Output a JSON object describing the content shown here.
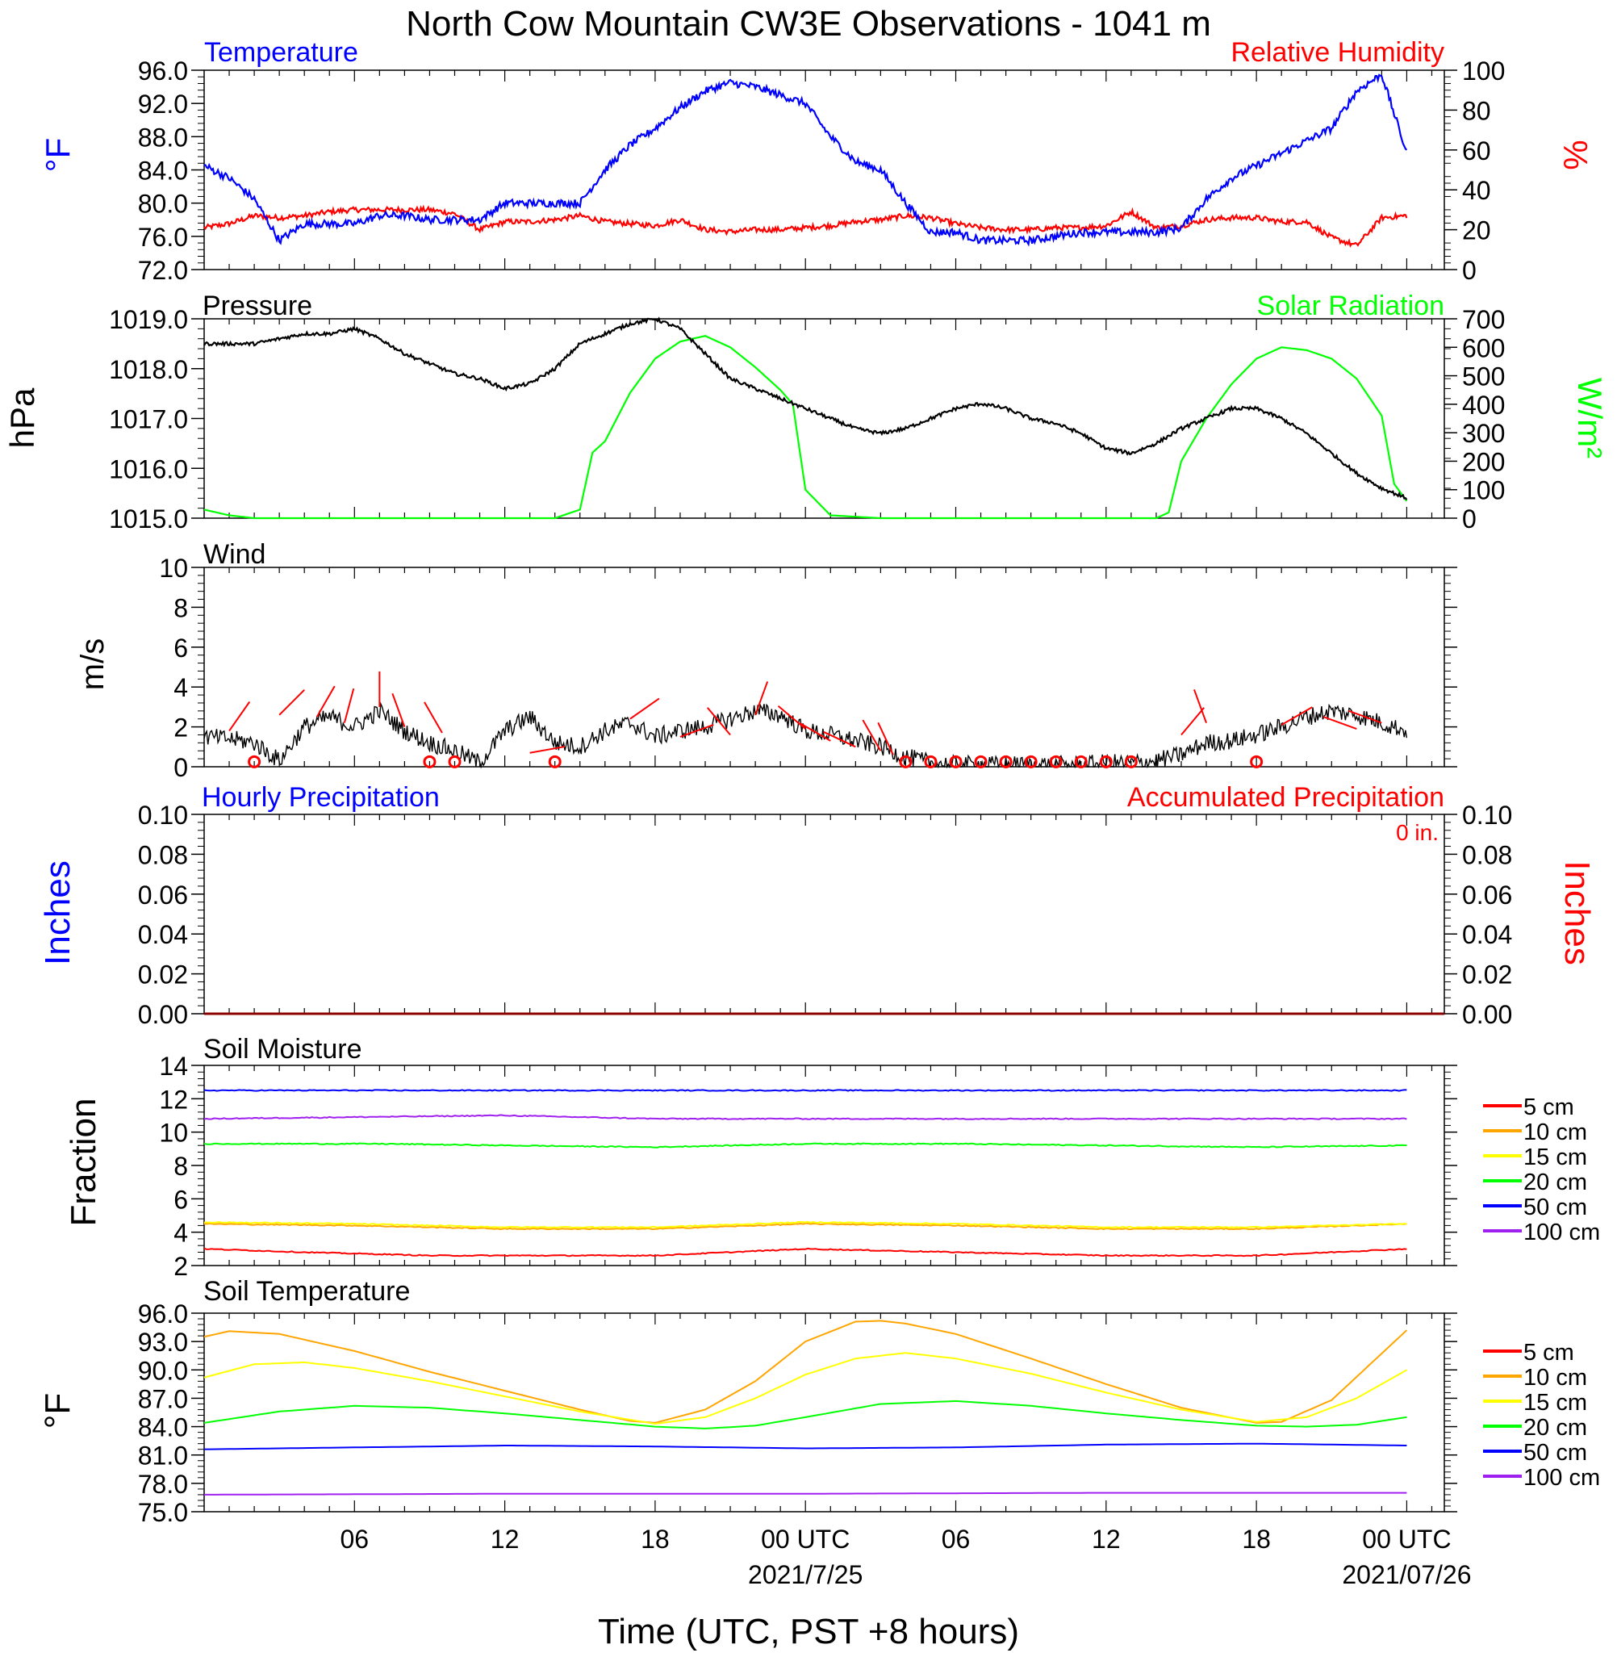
{
  "title": "North Cow Mountain CW3E Observations - 1041 m",
  "xlabel": "Time (UTC, PST +8 hours)",
  "x_ticks": [
    {
      "t": 6,
      "label": "06",
      "sub": ""
    },
    {
      "t": 12,
      "label": "12",
      "sub": ""
    },
    {
      "t": 18,
      "label": "18",
      "sub": ""
    },
    {
      "t": 24,
      "label": "00 UTC",
      "sub": "2021/7/25"
    },
    {
      "t": 30,
      "label": "06",
      "sub": ""
    },
    {
      "t": 36,
      "label": "12",
      "sub": ""
    },
    {
      "t": 42,
      "label": "18",
      "sub": ""
    },
    {
      "t": 48,
      "label": "00 UTC",
      "sub": "2021/07/26"
    }
  ],
  "legend_depths": [
    "5 cm",
    "10 cm",
    "15 cm",
    "20 cm",
    "50 cm",
    "100 cm"
  ],
  "depth_colors": [
    "#ff0000",
    "#ffa500",
    "#ffff00",
    "#00ff00",
    "#0000ff",
    "#a020f0"
  ],
  "panels": {
    "temp": {
      "left_title": "Temperature",
      "right_title": "Relative Humidity",
      "left_unit": "°F",
      "right_unit": "%",
      "left_ticks": [
        "96.0",
        "92.0",
        "88.0",
        "84.0",
        "80.0",
        "76.0",
        "72.0"
      ],
      "right_ticks": [
        "100",
        "80",
        "60",
        "40",
        "20",
        "0"
      ]
    },
    "pres": {
      "left_title": "Pressure",
      "right_title": "Solar Radiation",
      "left_unit": "hPa",
      "right_unit": "W/m²",
      "left_ticks": [
        "1019.0",
        "1018.0",
        "1017.0",
        "1016.0",
        "1015.0"
      ],
      "right_ticks": [
        "700",
        "600",
        "500",
        "400",
        "300",
        "200",
        "100",
        "0"
      ]
    },
    "wind": {
      "left_title": "Wind",
      "left_unit": "m/s",
      "left_ticks": [
        "10",
        "8",
        "6",
        "4",
        "2",
        "0"
      ]
    },
    "precip": {
      "left_title": "Hourly Precipitation",
      "right_title": "Accumulated Precipitation",
      "total": "0 in.",
      "left_unit": "Inches",
      "right_unit": "Inches",
      "left_ticks": [
        "0.10",
        "0.08",
        "0.06",
        "0.04",
        "0.02",
        "0.00"
      ],
      "right_ticks": [
        "0.10",
        "0.08",
        "0.06",
        "0.04",
        "0.02",
        "0.00"
      ]
    },
    "soilm": {
      "left_title": "Soil Moisture",
      "left_unit": "Fraction",
      "left_ticks": [
        "14",
        "12",
        "10",
        "8",
        "6",
        "4",
        "2"
      ]
    },
    "soilt": {
      "left_title": "Soil Temperature",
      "left_unit": "°F",
      "left_ticks": [
        "96.0",
        "93.0",
        "90.0",
        "87.0",
        "84.0",
        "81.0",
        "78.0",
        "75.0"
      ]
    }
  },
  "chart_data": [
    {
      "type": "line",
      "panel": "Temperature / Relative Humidity",
      "x_unit": "hours since 2021-07-24 00 UTC",
      "ylim_left": [
        72,
        96
      ],
      "ylim_right": [
        0,
        100
      ],
      "series": [
        {
          "name": "Temperature",
          "axis": "left",
          "color": "#0000ff",
          "x": [
            0,
            1,
            2,
            3,
            4,
            5,
            6,
            7,
            8,
            9,
            10,
            11,
            12,
            13,
            14,
            15,
            16,
            17,
            18,
            19,
            20,
            21,
            22,
            23,
            24,
            25,
            26,
            27,
            28,
            29,
            30,
            31,
            32,
            33,
            34,
            35,
            36,
            37,
            38,
            39,
            40,
            41,
            42,
            43,
            44,
            45,
            46,
            47,
            48
          ],
          "y": [
            84.5,
            83,
            80.5,
            75.5,
            77.5,
            77.5,
            77.5,
            78.5,
            78.5,
            78,
            78,
            78,
            80,
            80,
            80,
            80,
            84,
            87,
            89,
            91.5,
            93.5,
            94.5,
            94,
            93,
            92,
            88,
            85,
            84,
            80,
            76.5,
            76.5,
            75.5,
            75.5,
            75.5,
            76,
            76.5,
            76.5,
            76.5,
            76.5,
            77,
            80.5,
            83,
            84.5,
            86,
            87.5,
            89,
            93.5,
            95.5,
            86
          ]
        },
        {
          "name": "Relative Humidity",
          "axis": "right",
          "color": "#ff0000",
          "x": [
            0,
            1,
            2,
            3,
            4,
            5,
            6,
            7,
            8,
            9,
            10,
            11,
            12,
            13,
            14,
            15,
            16,
            17,
            18,
            19,
            20,
            21,
            22,
            23,
            24,
            25,
            26,
            27,
            28,
            29,
            30,
            31,
            32,
            33,
            34,
            35,
            36,
            37,
            38,
            39,
            40,
            41,
            42,
            43,
            44,
            45,
            46,
            47,
            48
          ],
          "y": [
            21,
            23,
            27,
            26,
            27,
            29,
            30,
            30,
            30,
            30,
            28,
            20,
            24,
            24,
            25,
            27,
            24,
            23,
            22,
            25,
            20,
            19,
            20,
            20,
            21,
            22,
            24,
            25,
            27,
            26,
            23,
            21,
            20,
            20,
            21,
            21,
            22,
            29,
            21,
            22,
            25,
            26,
            26,
            24,
            24,
            16,
            12,
            26,
            27
          ]
        }
      ]
    },
    {
      "type": "line",
      "panel": "Pressure / Solar Radiation",
      "x_unit": "hours since 2021-07-24 00 UTC",
      "ylim_left": [
        1015,
        1019
      ],
      "ylim_right": [
        0,
        700
      ],
      "series": [
        {
          "name": "Pressure",
          "axis": "left",
          "color": "#000000",
          "x": [
            0,
            1,
            2,
            3,
            4,
            5,
            6,
            7,
            8,
            9,
            10,
            11,
            12,
            13,
            14,
            15,
            16,
            17,
            18,
            19,
            20,
            21,
            22,
            23,
            24,
            25,
            26,
            27,
            28,
            29,
            30,
            31,
            32,
            33,
            34,
            35,
            36,
            37,
            38,
            39,
            40,
            41,
            42,
            43,
            44,
            45,
            46,
            47,
            48
          ],
          "y": [
            1018.5,
            1018.5,
            1018.5,
            1018.6,
            1018.7,
            1018.7,
            1018.8,
            1018.6,
            1018.3,
            1018.1,
            1017.9,
            1017.8,
            1017.6,
            1017.7,
            1018.0,
            1018.5,
            1018.7,
            1018.9,
            1019.0,
            1018.8,
            1018.3,
            1017.8,
            1017.6,
            1017.4,
            1017.2,
            1017.0,
            1016.8,
            1016.7,
            1016.8,
            1017.0,
            1017.2,
            1017.3,
            1017.2,
            1017.0,
            1016.9,
            1016.7,
            1016.4,
            1016.3,
            1016.5,
            1016.8,
            1017.0,
            1017.2,
            1017.2,
            1017.0,
            1016.7,
            1016.3,
            1015.9,
            1015.6,
            1015.4
          ]
        },
        {
          "name": "Solar Radiation",
          "axis": "right",
          "color": "#00ff00",
          "x": [
            0,
            1,
            2,
            3,
            4,
            5,
            6,
            7,
            8,
            9,
            10,
            11,
            12,
            13,
            14,
            15,
            15.5,
            16,
            17,
            18,
            19,
            20,
            21,
            22,
            23,
            23.5,
            24,
            25,
            26,
            27,
            28,
            29,
            30,
            31,
            32,
            33,
            34,
            35,
            36,
            37,
            38,
            38.5,
            39,
            40,
            41,
            42,
            43,
            44,
            45,
            46,
            47,
            47.5,
            48
          ],
          "y": [
            30,
            10,
            0,
            0,
            0,
            0,
            0,
            0,
            0,
            0,
            0,
            0,
            0,
            0,
            0,
            30,
            230,
            270,
            440,
            560,
            620,
            640,
            600,
            530,
            450,
            400,
            100,
            10,
            5,
            0,
            0,
            0,
            0,
            0,
            0,
            0,
            0,
            0,
            0,
            0,
            0,
            20,
            200,
            350,
            470,
            560,
            600,
            590,
            560,
            490,
            360,
            120,
            60
          ]
        }
      ]
    },
    {
      "type": "line",
      "panel": "Wind",
      "x_unit": "hours since 2021-07-24 00 UTC",
      "ylim": [
        0,
        10
      ],
      "series": [
        {
          "name": "Wind",
          "color": "#000000",
          "x": [
            0,
            1,
            2,
            3,
            4,
            5,
            6,
            7,
            8,
            9,
            10,
            11,
            12,
            13,
            14,
            15,
            16,
            17,
            18,
            19,
            20,
            21,
            22,
            23,
            24,
            25,
            26,
            27,
            28,
            29,
            30,
            31,
            32,
            33,
            34,
            35,
            36,
            37,
            38,
            39,
            40,
            41,
            42,
            43,
            44,
            45,
            46,
            47,
            48
          ],
          "y": [
            1.5,
            1.4,
            1.2,
            0.3,
            2.0,
            2.5,
            2.0,
            2.8,
            1.8,
            1.2,
            0.8,
            0.2,
            1.8,
            2.5,
            1.2,
            1.0,
            1.8,
            2.2,
            1.5,
            1.8,
            2.0,
            2.4,
            2.8,
            2.6,
            1.8,
            1.6,
            1.3,
            1.0,
            0.5,
            0.2,
            0.1,
            0.1,
            0.1,
            0.1,
            0.1,
            0.1,
            0.2,
            0.2,
            0.3,
            0.6,
            1.2,
            1.3,
            1.6,
            2.0,
            2.5,
            2.8,
            2.6,
            2.2,
            1.8
          ]
        }
      ],
      "calm_markers_hours": [
        2,
        9,
        10,
        14,
        28,
        29,
        30,
        31,
        32,
        33,
        34,
        35,
        36,
        37,
        42
      ]
    },
    {
      "type": "bar",
      "panel": "Hourly / Accumulated Precipitation",
      "x_unit": "hours since 2021-07-24 00 UTC",
      "ylim": [
        0,
        0.1
      ],
      "series": [
        {
          "name": "Hourly Precipitation",
          "values": [
            0
          ]
        },
        {
          "name": "Accumulated Precipitation",
          "values": [
            0
          ]
        }
      ]
    },
    {
      "type": "line",
      "panel": "Soil Moisture",
      "x_unit": "hours since 2021-07-24 00 UTC",
      "ylim": [
        2,
        14
      ],
      "series": [
        {
          "name": "5 cm",
          "color": "#ff0000",
          "x": [
            0,
            4,
            9,
            12,
            18,
            24,
            30,
            36,
            42,
            48
          ],
          "y": [
            3.0,
            2.8,
            2.6,
            2.6,
            2.6,
            3.0,
            2.8,
            2.6,
            2.6,
            3.0
          ]
        },
        {
          "name": "10 cm",
          "color": "#ffa500",
          "x": [
            0,
            6,
            12,
            18,
            24,
            30,
            36,
            42,
            48
          ],
          "y": [
            4.5,
            4.4,
            4.2,
            4.2,
            4.5,
            4.4,
            4.2,
            4.2,
            4.5
          ]
        },
        {
          "name": "15 cm",
          "color": "#ffff00",
          "x": [
            0,
            6,
            12,
            18,
            24,
            30,
            36,
            42,
            48
          ],
          "y": [
            4.6,
            4.5,
            4.3,
            4.3,
            4.6,
            4.5,
            4.3,
            4.3,
            4.5
          ]
        },
        {
          "name": "20 cm",
          "color": "#00ff00",
          "x": [
            0,
            7,
            12,
            18,
            24,
            30,
            36,
            42,
            48
          ],
          "y": [
            9.3,
            9.3,
            9.2,
            9.1,
            9.3,
            9.3,
            9.2,
            9.1,
            9.2
          ]
        },
        {
          "name": "50 cm",
          "color": "#0000ff",
          "x": [
            0,
            12,
            24,
            36,
            48
          ],
          "y": [
            12.5,
            12.5,
            12.5,
            12.5,
            12.5
          ]
        },
        {
          "name": "100 cm",
          "color": "#a020f0",
          "x": [
            0,
            6,
            12,
            18,
            24,
            30,
            36,
            42,
            48
          ],
          "y": [
            10.8,
            10.9,
            11.0,
            10.8,
            10.8,
            10.8,
            10.8,
            10.8,
            10.8
          ]
        }
      ]
    },
    {
      "type": "line",
      "panel": "Soil Temperature",
      "x_unit": "hours since 2021-07-24 00 UTC",
      "ylim": [
        75,
        96
      ],
      "series": [
        {
          "name": "5 cm",
          "color": "#ff0000",
          "x": [
            0,
            48
          ],
          "y": [
            null,
            null
          ]
        },
        {
          "name": "10 cm",
          "color": "#ffa500",
          "x": [
            0,
            1,
            3,
            6,
            9,
            12,
            15,
            17,
            18,
            20,
            22,
            24,
            26,
            27,
            28,
            30,
            33,
            36,
            39,
            42,
            43,
            45,
            48
          ],
          "y": [
            93.5,
            94.1,
            93.8,
            92.0,
            89.8,
            87.8,
            85.8,
            84.6,
            84.4,
            85.8,
            88.8,
            93.0,
            95.1,
            95.2,
            94.9,
            93.8,
            91.2,
            88.5,
            86.0,
            84.4,
            84.5,
            86.8,
            94.2
          ]
        },
        {
          "name": "15 cm",
          "color": "#ffff00",
          "x": [
            0,
            2,
            4,
            6,
            9,
            12,
            15,
            18,
            20,
            22,
            24,
            26,
            28,
            30,
            33,
            36,
            39,
            42,
            44,
            46,
            48
          ],
          "y": [
            89.2,
            90.6,
            90.8,
            90.2,
            88.8,
            87.2,
            85.6,
            84.3,
            85.0,
            87.0,
            89.5,
            91.2,
            91.8,
            91.2,
            89.6,
            87.6,
            85.8,
            84.5,
            85.0,
            87.0,
            90.0
          ]
        },
        {
          "name": "20 cm",
          "color": "#00ff00",
          "x": [
            0,
            3,
            6,
            9,
            12,
            15,
            18,
            20,
            22,
            24,
            27,
            30,
            33,
            36,
            39,
            42,
            44,
            46,
            48
          ],
          "y": [
            84.4,
            85.6,
            86.2,
            86.0,
            85.4,
            84.7,
            84.0,
            83.8,
            84.1,
            85.0,
            86.4,
            86.7,
            86.2,
            85.4,
            84.7,
            84.1,
            84.0,
            84.2,
            85.0
          ]
        },
        {
          "name": "50 cm",
          "color": "#0000ff",
          "x": [
            0,
            6,
            12,
            18,
            24,
            30,
            36,
            42,
            48
          ],
          "y": [
            81.6,
            81.8,
            82.0,
            81.9,
            81.7,
            81.8,
            82.1,
            82.2,
            82.0
          ]
        },
        {
          "name": "100 cm",
          "color": "#a020f0",
          "x": [
            0,
            12,
            24,
            36,
            48
          ],
          "y": [
            76.8,
            76.9,
            76.9,
            77.0,
            77.0
          ]
        }
      ]
    }
  ]
}
